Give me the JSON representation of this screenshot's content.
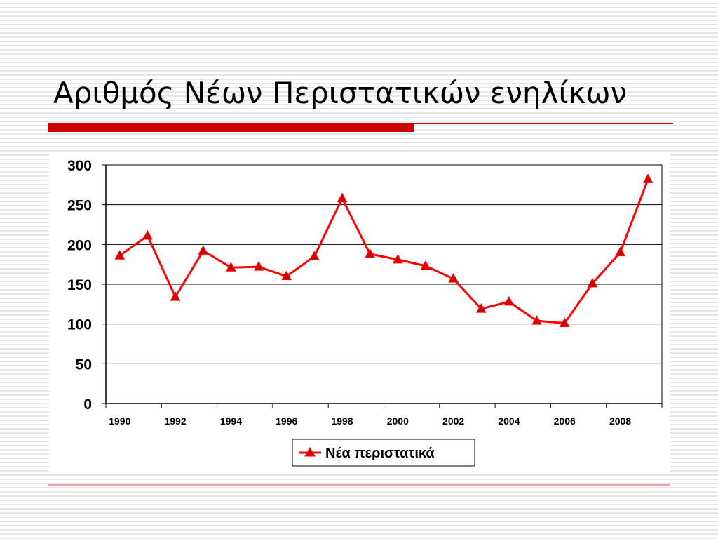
{
  "slide": {
    "title": "Αριθμός Νέων Περιστατικών ενηλίκων"
  },
  "colors": {
    "accent": "#cc0000",
    "series": "#ff0000",
    "gridline": "#000000"
  },
  "chart_data": {
    "type": "line",
    "title": "",
    "xlabel": "",
    "ylabel": "",
    "x": [
      1990,
      1991,
      1992,
      1993,
      1994,
      1995,
      1996,
      1997,
      1998,
      1999,
      2000,
      2001,
      2002,
      2003,
      2004,
      2005,
      2006,
      2007,
      2008,
      2009
    ],
    "x_tick_labels": [
      "1990",
      "1992",
      "1994",
      "1996",
      "1998",
      "2000",
      "2002",
      "2004",
      "2006",
      "2008"
    ],
    "ylim": [
      0,
      300
    ],
    "y_ticks": [
      0,
      50,
      100,
      150,
      200,
      250,
      300
    ],
    "grid": "horizontal",
    "legend_position": "bottom-center",
    "marker": "triangle",
    "series": [
      {
        "name": "Νέα περιστατικά",
        "values": [
          186,
          211,
          134,
          192,
          171,
          172,
          160,
          185,
          258,
          188,
          181,
          173,
          157,
          119,
          128,
          104,
          101,
          151,
          190,
          282
        ]
      }
    ]
  }
}
